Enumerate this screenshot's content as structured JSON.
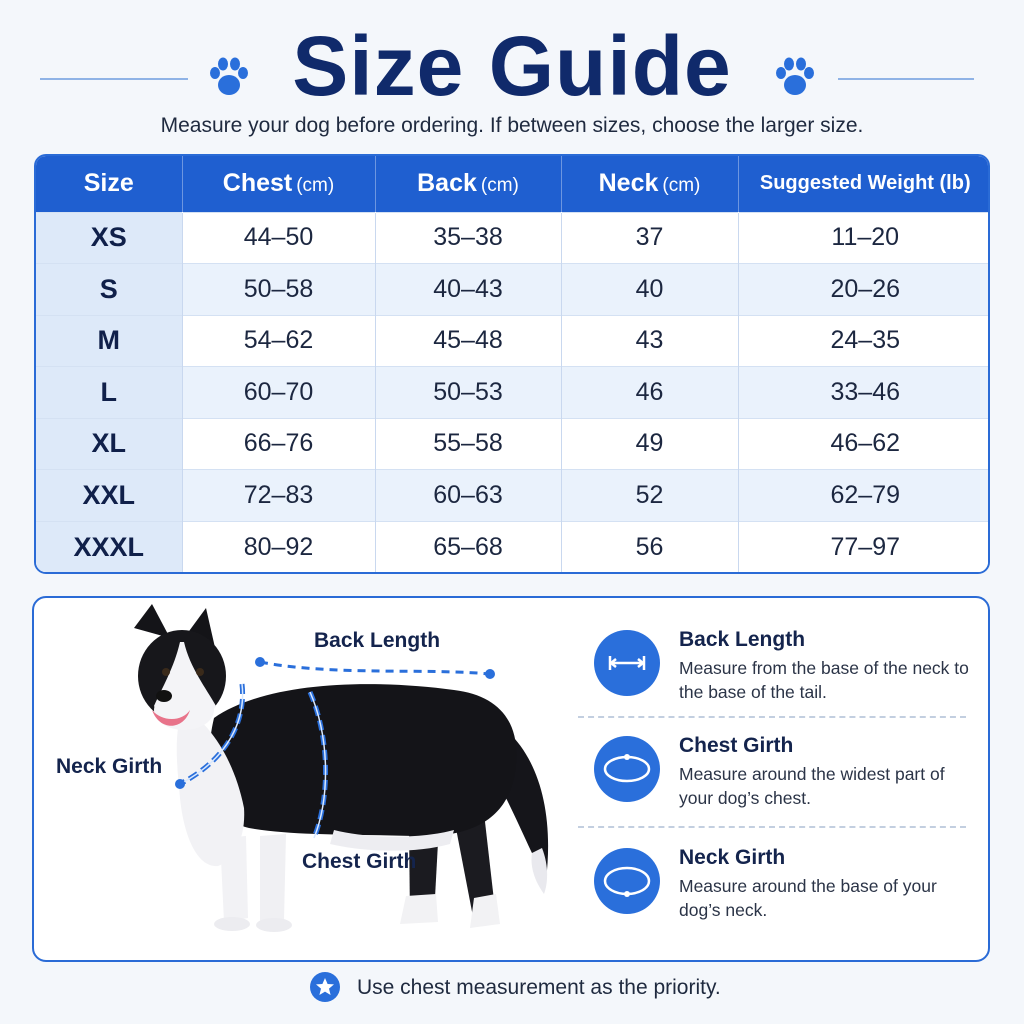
{
  "header": {
    "title": "Size Guide",
    "subtitle": "Measure your dog before ordering. If between sizes, choose the larger size."
  },
  "table": {
    "columns": [
      {
        "label": "Size",
        "unit": ""
      },
      {
        "label": "Chest",
        "unit": "(cm)"
      },
      {
        "label": "Back",
        "unit": "(cm)"
      },
      {
        "label": "Neck",
        "unit": "(cm)"
      },
      {
        "label": "Suggested Weight (lb)",
        "unit": ""
      }
    ],
    "rows": [
      [
        "XS",
        "44–50",
        "35–38",
        "37",
        "11–20"
      ],
      [
        "S",
        "50–58",
        "40–43",
        "40",
        "20–26"
      ],
      [
        "M",
        "54–62",
        "45–48",
        "43",
        "24–35"
      ],
      [
        "L",
        "60–70",
        "50–53",
        "46",
        "33–46"
      ],
      [
        "XL",
        "66–76",
        "55–58",
        "49",
        "46–62"
      ],
      [
        "XXL",
        "72–83",
        "60–63",
        "52",
        "62–79"
      ],
      [
        "XXXL",
        "80–92",
        "65–68",
        "56",
        "77–97"
      ]
    ]
  },
  "diagram": {
    "back_label": "Back Length",
    "neck_label": "Neck Girth",
    "chest_label": "Chest Girth"
  },
  "guide": [
    {
      "title": "Back Length",
      "desc": "Measure from the base of the neck to the base of the tail.",
      "icon": "ruler-arrows-icon"
    },
    {
      "title": "Chest Girth",
      "desc": "Measure around the widest part of your dog’s chest.",
      "icon": "tape-loop-icon"
    },
    {
      "title": "Neck Girth",
      "desc": "Measure around the base of your dog’s neck.",
      "icon": "collar-loop-icon"
    }
  ],
  "footer": {
    "note": "Use chest measurement as the priority.",
    "icon": "star-icon"
  },
  "colors": {
    "brand_blue": "#1f5fd0",
    "title_navy": "#102a6b",
    "row_alt": "#eaf2fc"
  }
}
